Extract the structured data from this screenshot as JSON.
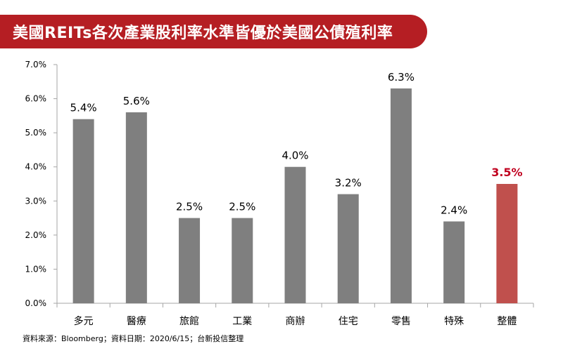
{
  "title": "美國REITs各次產業股利率水準皆優於美國公債殖利率",
  "footer": "資料來源：Bloomberg；資料日期：2020/6/15；台新投信整理",
  "colors": {
    "title_bg": "#b51e23",
    "bar_default": "#7f7f7f",
    "bar_highlight": "#c0504d",
    "label_highlight": "#c0001f",
    "axis": "#a6a6a6"
  },
  "chart_data": {
    "type": "bar",
    "title": "美國REITs各次產業股利率水準皆優於美國公債殖利率",
    "xlabel": "",
    "ylabel": "",
    "ylim": [
      0,
      7
    ],
    "yticks": [
      0,
      1,
      2,
      3,
      4,
      5,
      6,
      7
    ],
    "ytick_labels": [
      "0.0%",
      "1.0%",
      "2.0%",
      "3.0%",
      "4.0%",
      "5.0%",
      "6.0%",
      "7.0%"
    ],
    "grid": false,
    "categories": [
      "多元",
      "醫療",
      "旅館",
      "工業",
      "商辦",
      "住宅",
      "零售",
      "特殊",
      "整體"
    ],
    "values": [
      5.4,
      5.6,
      2.5,
      2.5,
      4.0,
      3.2,
      6.3,
      2.4,
      3.5
    ],
    "value_labels": [
      "5.4%",
      "5.6%",
      "2.5%",
      "2.5%",
      "4.0%",
      "3.2%",
      "6.3%",
      "2.4%",
      "3.5%"
    ],
    "highlight": [
      "整體"
    ]
  }
}
